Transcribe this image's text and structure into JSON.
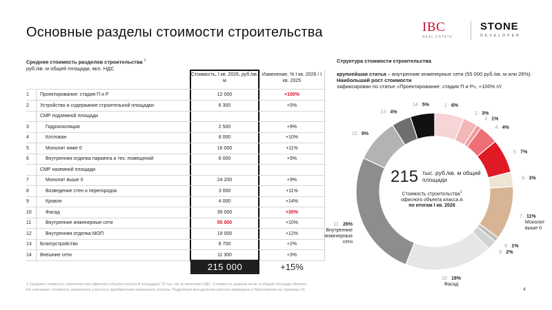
{
  "title": "Основные разделы стоимости строительства",
  "logos": {
    "ibc": "IBC",
    "ibc_sub": "REAL ESTATE",
    "stone": "STONE",
    "stone_sub": "DEVELOPER"
  },
  "table": {
    "heading_bold": "Средняя стоимость разделов строительства",
    "heading_sup": "1",
    "heading_line2": "руб./кв. м общей площади, вкл. НДС",
    "col_cost": "Стоимость, I кв. 2026, руб./кв. м",
    "col_change": "Изменение, % I кв. 2026 / I кв. 2025",
    "rows": [
      {
        "num": "1",
        "name": "Проектирование: стадия П и Р",
        "cost": "12 000",
        "change": "+100%"
      },
      {
        "num": "2",
        "name": "Устройство и содержание строительной площадки",
        "cost": "6 300",
        "change": "+5%"
      },
      {
        "num": "",
        "name": "СМР подземной площади",
        "cost": "",
        "change": ""
      },
      {
        "num": "3",
        "name": "Гидроизоляция",
        "cost": "2 500",
        "change": "+9%"
      },
      {
        "num": "4",
        "name": "Котлован",
        "cost": "8 000",
        "change": "+10%"
      },
      {
        "num": "5",
        "name": "Монолит ниже 0",
        "cost": "16 000",
        "change": "+11%"
      },
      {
        "num": "6",
        "name": "Внутренняя отделка паркинга и тех. помещений",
        "cost": "6 000",
        "change": "+9%"
      },
      {
        "num": "",
        "name": "СМР наземной площади",
        "cost": "",
        "change": ""
      },
      {
        "num": "7",
        "name": "Монолит выше 0",
        "cost": "24 200",
        "change": "+9%"
      },
      {
        "num": "8",
        "name": "Возведение стен и перегородок",
        "cost": "3 000",
        "change": "+11%"
      },
      {
        "num": "9",
        "name": "Кровля",
        "cost": "4 000",
        "change": "+14%"
      },
      {
        "num": "10",
        "name": "Фасад",
        "cost": "39 000",
        "change": "+30%"
      },
      {
        "num": "11",
        "name": "Внутренние инженерные сети",
        "cost": "55 000",
        "change": "+10%"
      },
      {
        "num": "12",
        "name": "Внутренняя отделка МОП",
        "cost": "19 000",
        "change": "+12%"
      },
      {
        "num": "13",
        "name": "Благоустройство",
        "cost": "8 700",
        "change": "+2%"
      },
      {
        "num": "14",
        "name": "Внешние сети",
        "cost": "11 300",
        "change": "+3%"
      }
    ],
    "total_cost": "215 000",
    "total_change": "+15%"
  },
  "footnote": {
    "line1": "1 Средняя стоимость строительства офисного объекта класса А площадью 70 тыс. кв. м, включает НДС. Стоимость указана на кв. м общей площади объекта.",
    "line2": "Не учитывает стоимость земельного участка и приобретения земельного участка. Подробная методология расчета приведена в Приложении на странице 14."
  },
  "page_number": "4",
  "structure": {
    "title": "Структура стоимости строительства",
    "note_lead": "крупнейшая статья",
    "note_rest": " – внутренние инженерные сети (55 000 руб./кв. м или 26%).",
    "note_bold": "Наибольший рост стоимости",
    "note_tail": "зафиксирован по статье «Проектирование: стадия П и Р», +100% г/г.",
    "center_value": "215",
    "center_unit": "тыс. руб./кв. м общей площади",
    "center_desc": "Стоимость строительства",
    "center_desc_sup": "1",
    "center_desc2": "офисного объекта класса А",
    "center_desc_bold": "по итогам I кв. 2026"
  },
  "chart_data": {
    "type": "pie",
    "title": "Структура стоимости строительства",
    "categories": [
      "1",
      "2",
      "3",
      "4",
      "5",
      "6",
      "7",
      "8",
      "9",
      "10",
      "11",
      "12",
      "13",
      "14"
    ],
    "values": [
      6,
      3,
      1,
      4,
      7,
      3,
      11,
      1,
      2,
      18,
      26,
      9,
      4,
      5
    ],
    "colors": [
      "#f7d4d6",
      "#f3b7b9",
      "#ef9a9e",
      "#ee6f76",
      "#e01a25",
      "#efe3d3",
      "#d7b594",
      "#bfbfbf",
      "#d2d2d2",
      "#e6e6e6",
      "#8d8d8d",
      "#b3b3b3",
      "#6f6f6f",
      "#111111"
    ],
    "labels": [
      {
        "num": "1",
        "pct": "6%"
      },
      {
        "num": "2",
        "pct": "3%"
      },
      {
        "num": "3",
        "pct": "1%"
      },
      {
        "num": "4",
        "pct": "4%"
      },
      {
        "num": "5",
        "pct": "7%"
      },
      {
        "num": "6",
        "pct": "3%"
      },
      {
        "num": "7",
        "pct": "11%",
        "desc": [
          "Монолит",
          "выше 0"
        ]
      },
      {
        "num": "8",
        "pct": "1%"
      },
      {
        "num": "9",
        "pct": "2%"
      },
      {
        "num": "10",
        "pct": "18%",
        "desc": [
          "Фасад"
        ]
      },
      {
        "num": "11",
        "pct": "26%",
        "desc": [
          "Внутренние",
          "инженерные",
          "сети"
        ]
      },
      {
        "num": "12",
        "pct": "9%"
      },
      {
        "num": "13",
        "pct": "4%"
      },
      {
        "num": "14",
        "pct": "5%"
      }
    ],
    "center_value": "215"
  }
}
